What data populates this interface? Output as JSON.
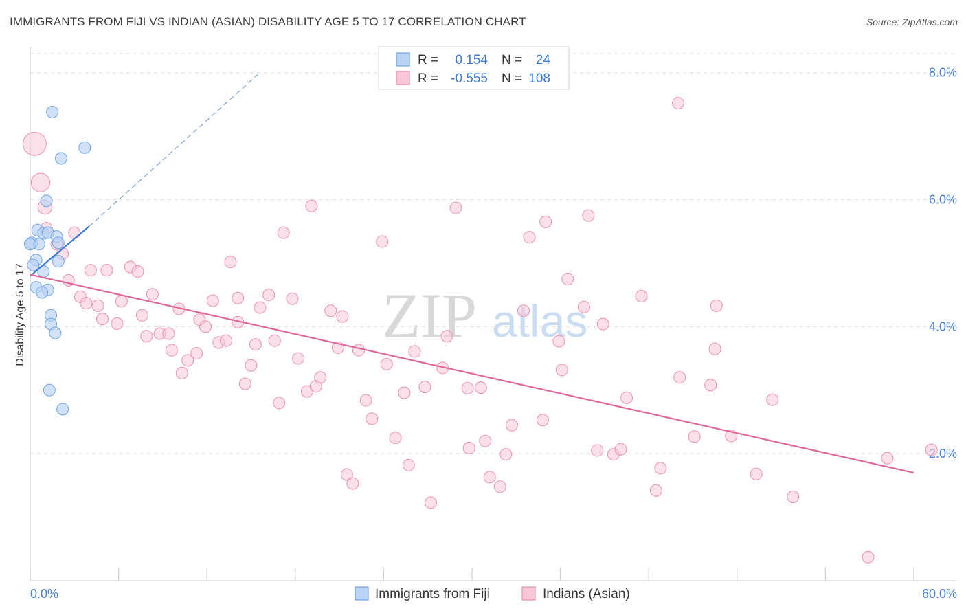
{
  "title": "IMMIGRANTS FROM FIJI VS INDIAN (ASIAN) DISABILITY AGE 5 TO 17 CORRELATION CHART",
  "source": "Source: ZipAtlas.com",
  "watermark": {
    "zip": "ZIP",
    "atlas": "atlas"
  },
  "colors": {
    "fiji": "#6fa3e6",
    "fiji_fill": "#b9d3f4",
    "fiji_line": "#3b7bd4",
    "indian": "#ec8fb0",
    "indian_fill": "#f7c6d7",
    "indian_line": "#e0679a",
    "tick_text": "#4a7fd0",
    "grid": "#dedede"
  },
  "chart_data": {
    "type": "scatter",
    "title": "IMMIGRANTS FROM FIJI VS INDIAN (ASIAN) DISABILITY AGE 5 TO 17 CORRELATION CHART",
    "xlabel": "",
    "ylabel": "Disability Age 5 to 17",
    "xlim": [
      0,
      60
    ],
    "ylim": [
      0,
      8.3
    ],
    "x_tick_labels": [
      "0.0%",
      "60.0%"
    ],
    "y_ticks": [
      2,
      4,
      6,
      8
    ],
    "y_tick_labels": [
      "2.0%",
      "4.0%",
      "6.0%",
      "8.0%"
    ],
    "grid": true,
    "legend": {
      "placement": "top-center",
      "entries": [
        {
          "r_label": "R =",
          "r_value": "0.154",
          "n_label": "N =",
          "n_value": "24"
        },
        {
          "r_label": "R =",
          "r_value": "-0.555",
          "n_label": "N =",
          "n_value": "108"
        }
      ]
    },
    "series": [
      {
        "name": "Immigrants from Fiji",
        "color": "#6fa3e6",
        "trend": {
          "x": [
            0.0,
            4.0
          ],
          "y": [
            4.8,
            5.58
          ],
          "dashed_extension_to": [
            15.5,
            7.98
          ]
        },
        "points": [
          {
            "x": 1.5,
            "y": 7.38
          },
          {
            "x": 2.1,
            "y": 6.65
          },
          {
            "x": 3.7,
            "y": 6.82
          },
          {
            "x": 1.1,
            "y": 5.98
          },
          {
            "x": 0.5,
            "y": 5.52
          },
          {
            "x": 0.9,
            "y": 5.47
          },
          {
            "x": 1.2,
            "y": 5.48
          },
          {
            "x": 1.8,
            "y": 5.42
          },
          {
            "x": 0.1,
            "y": 5.32
          },
          {
            "x": 0.6,
            "y": 5.3
          },
          {
            "x": 1.9,
            "y": 5.32
          },
          {
            "x": 0.4,
            "y": 5.05
          },
          {
            "x": 1.9,
            "y": 5.03
          },
          {
            "x": 0.2,
            "y": 4.97
          },
          {
            "x": 0.9,
            "y": 4.87
          },
          {
            "x": 0.4,
            "y": 4.62
          },
          {
            "x": 1.2,
            "y": 4.58
          },
          {
            "x": 0.8,
            "y": 4.54
          },
          {
            "x": 1.4,
            "y": 4.18
          },
          {
            "x": 1.4,
            "y": 4.04
          },
          {
            "x": 1.7,
            "y": 3.9
          },
          {
            "x": 1.3,
            "y": 3.0
          },
          {
            "x": 2.2,
            "y": 2.7
          },
          {
            "x": 0.0,
            "y": 5.3
          }
        ]
      },
      {
        "name": "Indians (Asian)",
        "color": "#ec8fb0",
        "trend": {
          "x": [
            0.0,
            60.0
          ],
          "y": [
            4.82,
            1.7
          ]
        },
        "points": [
          {
            "x": 0.3,
            "y": 6.88,
            "s": 2
          },
          {
            "x": 0.7,
            "y": 6.27,
            "s": 1.6
          },
          {
            "x": 1.0,
            "y": 5.88,
            "s": 1.2
          },
          {
            "x": 1.1,
            "y": 5.55
          },
          {
            "x": 1.8,
            "y": 5.3
          },
          {
            "x": 2.2,
            "y": 5.15
          },
          {
            "x": 3.0,
            "y": 5.48
          },
          {
            "x": 2.6,
            "y": 4.73
          },
          {
            "x": 3.4,
            "y": 4.47
          },
          {
            "x": 3.8,
            "y": 4.37
          },
          {
            "x": 4.1,
            "y": 4.89
          },
          {
            "x": 4.6,
            "y": 4.33
          },
          {
            "x": 4.9,
            "y": 4.12
          },
          {
            "x": 5.2,
            "y": 4.89
          },
          {
            "x": 5.9,
            "y": 4.05
          },
          {
            "x": 6.2,
            "y": 4.4
          },
          {
            "x": 6.8,
            "y": 4.94
          },
          {
            "x": 7.3,
            "y": 4.87
          },
          {
            "x": 7.6,
            "y": 4.18
          },
          {
            "x": 7.9,
            "y": 3.85
          },
          {
            "x": 8.3,
            "y": 4.51
          },
          {
            "x": 8.8,
            "y": 3.89
          },
          {
            "x": 9.4,
            "y": 3.89
          },
          {
            "x": 9.6,
            "y": 3.63
          },
          {
            "x": 10.1,
            "y": 4.28
          },
          {
            "x": 10.3,
            "y": 3.27
          },
          {
            "x": 10.7,
            "y": 3.47
          },
          {
            "x": 11.3,
            "y": 3.58
          },
          {
            "x": 11.5,
            "y": 4.11
          },
          {
            "x": 11.9,
            "y": 4.0
          },
          {
            "x": 12.4,
            "y": 4.41
          },
          {
            "x": 12.8,
            "y": 3.75
          },
          {
            "x": 13.3,
            "y": 3.78
          },
          {
            "x": 13.6,
            "y": 5.02
          },
          {
            "x": 14.1,
            "y": 4.45
          },
          {
            "x": 14.1,
            "y": 4.07
          },
          {
            "x": 14.6,
            "y": 3.1
          },
          {
            "x": 15.0,
            "y": 3.39
          },
          {
            "x": 15.3,
            "y": 3.72
          },
          {
            "x": 15.6,
            "y": 4.3
          },
          {
            "x": 16.2,
            "y": 4.5
          },
          {
            "x": 16.6,
            "y": 3.78
          },
          {
            "x": 16.9,
            "y": 2.8
          },
          {
            "x": 17.2,
            "y": 5.48
          },
          {
            "x": 17.8,
            "y": 4.44
          },
          {
            "x": 18.2,
            "y": 3.5
          },
          {
            "x": 18.8,
            "y": 2.98
          },
          {
            "x": 19.1,
            "y": 5.9
          },
          {
            "x": 19.4,
            "y": 3.06
          },
          {
            "x": 19.7,
            "y": 3.2
          },
          {
            "x": 20.4,
            "y": 4.25
          },
          {
            "x": 20.9,
            "y": 3.67
          },
          {
            "x": 21.2,
            "y": 4.16
          },
          {
            "x": 21.5,
            "y": 1.67
          },
          {
            "x": 21.9,
            "y": 1.53
          },
          {
            "x": 22.3,
            "y": 3.63
          },
          {
            "x": 22.8,
            "y": 2.84
          },
          {
            "x": 23.2,
            "y": 2.55
          },
          {
            "x": 23.9,
            "y": 5.34
          },
          {
            "x": 24.2,
            "y": 3.41
          },
          {
            "x": 24.8,
            "y": 2.25
          },
          {
            "x": 25.4,
            "y": 2.96
          },
          {
            "x": 25.7,
            "y": 1.82
          },
          {
            "x": 26.1,
            "y": 3.61
          },
          {
            "x": 26.8,
            "y": 3.05
          },
          {
            "x": 27.2,
            "y": 1.23
          },
          {
            "x": 28.0,
            "y": 3.35
          },
          {
            "x": 28.3,
            "y": 3.85
          },
          {
            "x": 28.9,
            "y": 5.87
          },
          {
            "x": 29.7,
            "y": 3.03
          },
          {
            "x": 29.8,
            "y": 2.09
          },
          {
            "x": 30.6,
            "y": 3.04
          },
          {
            "x": 30.9,
            "y": 2.2
          },
          {
            "x": 31.2,
            "y": 1.63
          },
          {
            "x": 31.9,
            "y": 1.48
          },
          {
            "x": 32.3,
            "y": 1.99
          },
          {
            "x": 32.7,
            "y": 2.45
          },
          {
            "x": 33.5,
            "y": 4.25
          },
          {
            "x": 33.9,
            "y": 5.41
          },
          {
            "x": 34.8,
            "y": 2.53
          },
          {
            "x": 35.0,
            "y": 5.65
          },
          {
            "x": 35.9,
            "y": 3.77
          },
          {
            "x": 36.1,
            "y": 3.32
          },
          {
            "x": 36.5,
            "y": 4.75
          },
          {
            "x": 37.6,
            "y": 4.31
          },
          {
            "x": 37.9,
            "y": 5.75
          },
          {
            "x": 38.5,
            "y": 2.05
          },
          {
            "x": 38.9,
            "y": 4.04
          },
          {
            "x": 39.6,
            "y": 1.99
          },
          {
            "x": 40.1,
            "y": 2.07
          },
          {
            "x": 40.5,
            "y": 2.88
          },
          {
            "x": 41.5,
            "y": 4.48
          },
          {
            "x": 42.5,
            "y": 1.42
          },
          {
            "x": 42.8,
            "y": 1.77
          },
          {
            "x": 44.1,
            "y": 3.2
          },
          {
            "x": 45.1,
            "y": 2.27
          },
          {
            "x": 46.2,
            "y": 3.08
          },
          {
            "x": 46.6,
            "y": 4.33
          },
          {
            "x": 46.5,
            "y": 3.65
          },
          {
            "x": 47.6,
            "y": 2.28
          },
          {
            "x": 49.3,
            "y": 1.68
          },
          {
            "x": 50.4,
            "y": 2.85
          },
          {
            "x": 51.8,
            "y": 1.32
          },
          {
            "x": 56.9,
            "y": 0.37
          },
          {
            "x": 58.2,
            "y": 1.93
          },
          {
            "x": 61.2,
            "y": 2.06
          },
          {
            "x": 44.0,
            "y": 7.52
          }
        ]
      }
    ]
  },
  "bottom_legend": [
    {
      "label": "Immigrants from Fiji"
    },
    {
      "label": "Indians (Asian)"
    }
  ]
}
